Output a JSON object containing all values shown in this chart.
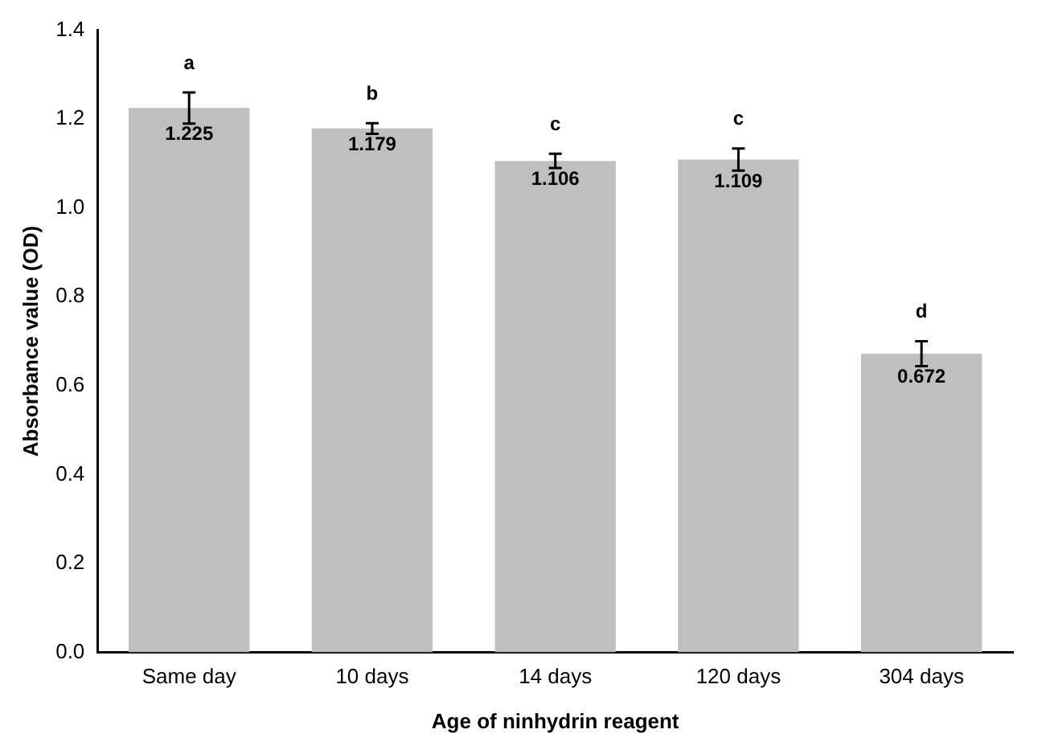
{
  "chart_data": {
    "type": "bar",
    "xlabel": "Age of ninhydrin reagent",
    "ylabel": "Absorbance value (OD)",
    "categories": [
      "Same day",
      "10 days",
      "14 days",
      "120 days",
      "304 days"
    ],
    "values": [
      1.225,
      1.179,
      1.106,
      1.109,
      0.672
    ],
    "errors": [
      0.035,
      0.012,
      0.016,
      0.025,
      0.028
    ],
    "color": "#bfbfbf",
    "data_labels": true,
    "ylim": [
      0,
      1.4
    ],
    "yticks": [
      {
        "value": 0,
        "label": "0.0"
      },
      {
        "value": 0.2,
        "label": "0.2"
      },
      {
        "value": 0.4,
        "label": "0.4"
      },
      {
        "value": 0.6,
        "label": "0.6"
      },
      {
        "value": 0.8,
        "label": "0.8"
      },
      {
        "value": 1,
        "label": "1.0"
      },
      {
        "value": 1.2,
        "label": "1.2"
      },
      {
        "value": 1.4,
        "label": "1.4"
      }
    ],
    "grid": false,
    "legend": false,
    "annotations": [
      "a",
      "b",
      "c",
      "c",
      "d"
    ]
  }
}
